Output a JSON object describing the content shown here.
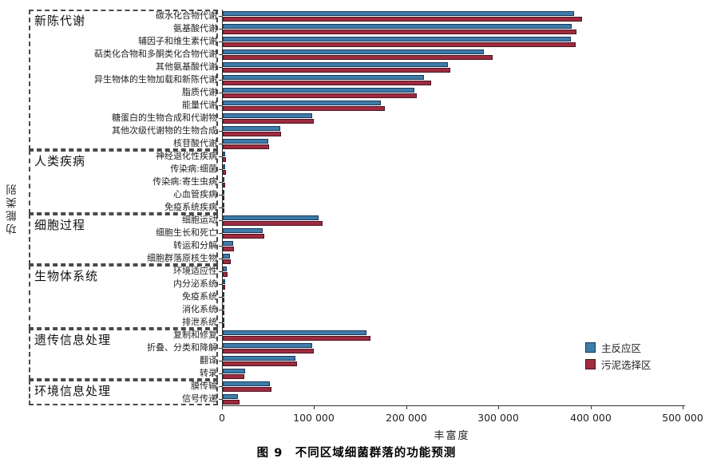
{
  "figure": {
    "y_axis_label": "功能类别",
    "x_axis_label": "丰富度",
    "caption": "图 9　不同区域细菌群落的功能预测"
  },
  "legend": {
    "items": [
      {
        "label": "主反应区",
        "color": "#3f7ca8",
        "border": "#16365c"
      },
      {
        "label": "污泥选择区",
        "color": "#9e2b3f",
        "border": "#4d1420"
      }
    ]
  },
  "chart_data": {
    "type": "bar",
    "orientation": "horizontal",
    "title": "图 9　不同区域细菌群落的功能预测",
    "xlabel": "丰富度",
    "ylabel": "功能类别",
    "xlim": [
      0,
      500000
    ],
    "x_ticks": [
      0,
      100000,
      200000,
      300000,
      400000,
      500000
    ],
    "x_tick_labels": [
      "0",
      "100 000",
      "200 000",
      "300 000",
      "400 000",
      "500 000"
    ],
    "grid": false,
    "legend_position": "right-middle",
    "series_names": [
      "主反应区",
      "污泥选择区"
    ],
    "series_colors": [
      "#3f7ca8",
      "#9e2b3f"
    ],
    "groups": [
      {
        "name": "新陈代谢",
        "items": [
          {
            "label": "碳水化合物代谢",
            "values": [
              381000,
              390000
            ]
          },
          {
            "label": "氨基酸代谢",
            "values": [
              379000,
              384000
            ]
          },
          {
            "label": "辅因子和维生素代谢",
            "values": [
              378000,
              383000
            ]
          },
          {
            "label": "萜类化合物和多酮类化合物代谢",
            "values": [
              283000,
              293000
            ]
          },
          {
            "label": "其他氨基酸代谢",
            "values": [
              244000,
              247000
            ]
          },
          {
            "label": "异生物体的生物加载和新陈代谢",
            "values": [
              218000,
              226000
            ]
          },
          {
            "label": "脂质代谢",
            "values": [
              208000,
              211000
            ]
          },
          {
            "label": "能量代谢",
            "values": [
              172000,
              176000
            ]
          },
          {
            "label": "糖蛋白的生物合成和代谢物",
            "values": [
              97000,
              99000
            ]
          },
          {
            "label": "其他次级代谢物的生物合成",
            "values": [
              62000,
              63000
            ]
          },
          {
            "label": "核苷酸代谢",
            "values": [
              49000,
              50000
            ]
          }
        ]
      },
      {
        "name": "人类疾病",
        "items": [
          {
            "label": "神经退化性疾病",
            "values": [
              3000,
              3600
            ]
          },
          {
            "label": "传染病:细菌",
            "values": [
              2900,
              3700
            ]
          },
          {
            "label": "传染病:寄生虫病",
            "values": [
              2000,
              2800
            ]
          },
          {
            "label": "心血管疾病",
            "values": [
              600,
              700
            ]
          },
          {
            "label": "免疫系统疾病",
            "values": [
              500,
              600
            ]
          }
        ]
      },
      {
        "name": "细胞过程",
        "items": [
          {
            "label": "细胞运动",
            "values": [
              104000,
              108000
            ]
          },
          {
            "label": "细胞生长和死亡",
            "values": [
              43000,
              45000
            ]
          },
          {
            "label": "转运和分解",
            "values": [
              11000,
              12000
            ]
          },
          {
            "label": "细胞群落原核生物",
            "values": [
              7800,
              9000
            ]
          }
        ]
      },
      {
        "name": "生物体系统",
        "items": [
          {
            "label": "环境适应性",
            "values": [
              4000,
              5000
            ]
          },
          {
            "label": "内分泌系统",
            "values": [
              2500,
              3000
            ]
          },
          {
            "label": "免疫系统",
            "values": [
              1600,
              1800
            ]
          },
          {
            "label": "消化系统",
            "values": [
              1400,
              1600
            ]
          },
          {
            "label": "排泄系统",
            "values": [
              700,
              800
            ]
          }
        ]
      },
      {
        "name": "遗传信息处理",
        "items": [
          {
            "label": "复制和修复",
            "values": [
              156000,
              160000
            ]
          },
          {
            "label": "折叠、分类和降解",
            "values": [
              97000,
              99000
            ]
          },
          {
            "label": "翻译",
            "values": [
              79000,
              81000
            ]
          },
          {
            "label": "转录",
            "values": [
              24000,
              23000
            ]
          }
        ]
      },
      {
        "name": "环境信息处理",
        "items": [
          {
            "label": "膜传输",
            "values": [
              51000,
              53000
            ]
          },
          {
            "label": "信号传递",
            "values": [
              16500,
              18500
            ]
          }
        ]
      }
    ]
  }
}
